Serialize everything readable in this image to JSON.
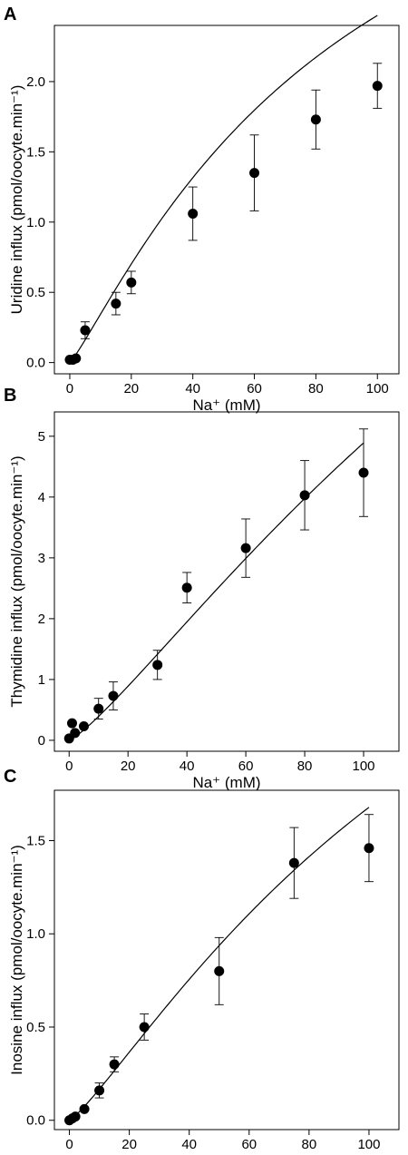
{
  "chart_data": [
    {
      "type": "scatter",
      "panel": "A",
      "xlabel": "Na⁺ (mM)",
      "ylabel": "Uridine influx (pmol/oocyte.min⁻¹)",
      "xlim": [
        -5,
        107
      ],
      "ylim": [
        -0.08,
        2.4
      ],
      "xticks": [
        0,
        20,
        40,
        60,
        80,
        100
      ],
      "yticks": [
        "0.0",
        "0.5",
        "1.0",
        "1.5",
        "2.0"
      ],
      "grid": false,
      "points": [
        {
          "x": 0,
          "y": 0.02,
          "err": 0.0
        },
        {
          "x": 1,
          "y": 0.02,
          "err": 0.0
        },
        {
          "x": 2,
          "y": 0.03,
          "err": 0.0
        },
        {
          "x": 5,
          "y": 0.23,
          "err": 0.06
        },
        {
          "x": 15,
          "y": 0.42,
          "err": 0.08
        },
        {
          "x": 20,
          "y": 0.57,
          "err": 0.08
        },
        {
          "x": 40,
          "y": 1.06,
          "err": 0.19
        },
        {
          "x": 60,
          "y": 1.35,
          "err": 0.27
        },
        {
          "x": 80,
          "y": 1.73,
          "err": 0.21
        },
        {
          "x": 100,
          "y": 1.97,
          "err": 0.16
        }
      ],
      "fit": {
        "vmax": 4.66,
        "k50": 90,
        "hill": 1.15
      }
    },
    {
      "type": "scatter",
      "panel": "B",
      "xlabel": "Na⁺ (mM)",
      "ylabel": "Thymidine influx (pmol/oocyte.min⁻¹)",
      "xlim": [
        -5,
        112
      ],
      "ylim": [
        -0.18,
        5.4
      ],
      "xticks": [
        0,
        20,
        40,
        60,
        80,
        100
      ],
      "yticks": [
        "0",
        "1",
        "2",
        "3",
        "4",
        "5"
      ],
      "grid": false,
      "points": [
        {
          "x": 0,
          "y": 0.03,
          "err": 0.0
        },
        {
          "x": 1,
          "y": 0.28,
          "err": 0.0
        },
        {
          "x": 2,
          "y": 0.12,
          "err": 0.0
        },
        {
          "x": 5,
          "y": 0.23,
          "err": 0.0
        },
        {
          "x": 10,
          "y": 0.52,
          "err": 0.17
        },
        {
          "x": 15,
          "y": 0.73,
          "err": 0.23
        },
        {
          "x": 30,
          "y": 1.24,
          "err": 0.24
        },
        {
          "x": 40,
          "y": 2.51,
          "err": 0.25
        },
        {
          "x": 60,
          "y": 3.16,
          "err": 0.48
        },
        {
          "x": 80,
          "y": 4.03,
          "err": 0.57
        },
        {
          "x": 100,
          "y": 4.4,
          "err": 0.72
        }
      ],
      "fit": {
        "vmax": 18.4,
        "k50": 230,
        "hill": 1.22
      }
    },
    {
      "type": "scatter",
      "panel": "C",
      "xlabel": "Na⁺ (mM)",
      "ylabel": "Inosine influx (pmol/oocyte.min⁻¹)",
      "xlim": [
        -5,
        110
      ],
      "ylim": [
        -0.05,
        1.77
      ],
      "xticks": [
        0,
        20,
        40,
        60,
        80,
        100
      ],
      "yticks": [
        "0.0",
        "0.5",
        "1.0",
        "1.5"
      ],
      "grid": false,
      "points": [
        {
          "x": 0,
          "y": 0.0,
          "err": 0.0
        },
        {
          "x": 1,
          "y": 0.01,
          "err": 0.0
        },
        {
          "x": 2,
          "y": 0.02,
          "err": 0.0
        },
        {
          "x": 5,
          "y": 0.06,
          "err": 0.0
        },
        {
          "x": 10,
          "y": 0.16,
          "err": 0.04
        },
        {
          "x": 15,
          "y": 0.3,
          "err": 0.04
        },
        {
          "x": 25,
          "y": 0.5,
          "err": 0.07
        },
        {
          "x": 50,
          "y": 0.8,
          "err": 0.18
        },
        {
          "x": 75,
          "y": 1.38,
          "err": 0.19
        },
        {
          "x": 100,
          "y": 1.46,
          "err": 0.18
        }
      ],
      "fit": {
        "vmax": 4.3,
        "k50": 145,
        "hill": 1.2
      }
    }
  ]
}
